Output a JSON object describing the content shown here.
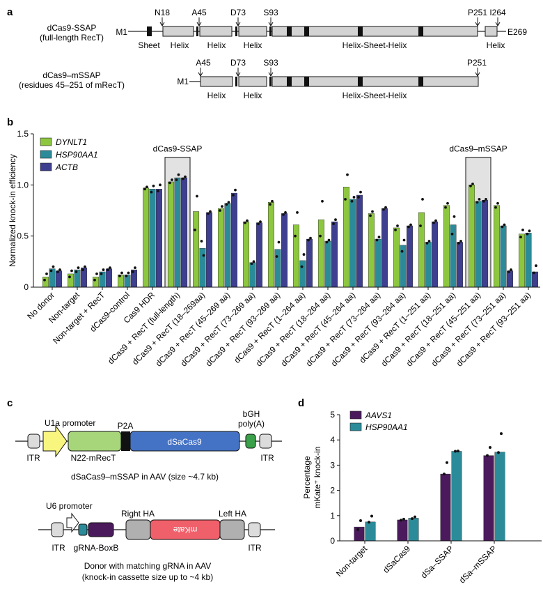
{
  "panel_labels": {
    "a": "a",
    "b": "b",
    "c": "c",
    "d": "d"
  },
  "panel_a": {
    "construct1": {
      "name_line1": "dCas9-SSAP",
      "name_line2": "(full-length RecT)",
      "start_label": "M1",
      "end_label": "E269",
      "markers": [
        "N18",
        "A45",
        "D73",
        "S93",
        "P251",
        "I264"
      ],
      "domains": [
        "Sheet",
        "Helix",
        "Helix",
        "Helix",
        "Helix-Sheet-Helix",
        "Helix"
      ]
    },
    "construct2": {
      "name_line1": "dCas9–mSSAP",
      "name_line2": "(residues 45–251 of mRecT)",
      "start_label": "M1",
      "markers": [
        "A45",
        "D73",
        "S93",
        "P251"
      ],
      "domains": [
        "Helix",
        "Helix",
        "Helix-Sheet-Helix"
      ]
    }
  },
  "panel_c": {
    "aav1": {
      "top_labels": [
        "U1a promoter",
        "P2A",
        "bGH",
        "poly(A)"
      ],
      "bottom_labels": [
        "ITR",
        "N22-mRecT",
        "ITR"
      ],
      "gene_label": "dSaCas9",
      "caption": "dSaCas9–mSSAP in AAV (size ~4.7 kb)"
    },
    "aav2": {
      "top_labels": [
        "U6 promoter",
        "Right HA",
        "Left HA"
      ],
      "bottom_labels": [
        "ITR",
        "gRNA-BoxB",
        "ITR"
      ],
      "gene_label": "mKate",
      "caption_line1": "Donor with matching gRNA in AAV",
      "caption_line2": "(knock-in cassette size up to ~4 kb)"
    }
  },
  "chart_data": [
    {
      "panel": "b",
      "type": "bar",
      "ylabel": "Normalized knock-in efficiency",
      "ylim": [
        0,
        1.5
      ],
      "yticks": [
        "0",
        "0.5",
        "1.0",
        "1.5"
      ],
      "legend_position": "top-left",
      "categories": [
        "No donor",
        "Non-target",
        "Non-target + RecT",
        "dCas9-control",
        "Cas9 HDR",
        "dCas9 + RecT (full-length)",
        "dCas9 + RecT (18–269aa)",
        "dCas9 + RecT (45–269 aa)",
        "dCas9 + RecT (73–269 aa)",
        "dCas9 + RecT (93–269 aa)",
        "dCas9 + RecT (1–264 aa)",
        "dCas9 + RecT (18–264 aa)",
        "dCas9 + RecT (45–264 aa)",
        "dCas9 + RecT (73–264 aa)",
        "dCas9 + RecT (93–264 aa)",
        "dCas9 + RecT (1–251 aa)",
        "dCas9 + RecT (18–251 aa)",
        "dCas9 + RecT (45–251 aa)",
        "dCas9 + RecT (73–251 aa)",
        "dCas9 + RecT (93–251 aa)"
      ],
      "series": [
        {
          "name": "DYNLT1",
          "color": "#8dc63f",
          "values": [
            0.1,
            0.13,
            0.1,
            0.12,
            0.97,
            1.03,
            0.74,
            0.77,
            0.64,
            0.83,
            0.61,
            0.66,
            0.98,
            0.72,
            0.58,
            0.73,
            0.8,
            1.0,
            0.8,
            0.52
          ],
          "points": [
            [
              0.07,
              0.13
            ],
            [
              0.1,
              0.16
            ],
            [
              0.07,
              0.13
            ],
            [
              0.11,
              0.14
            ],
            [
              0.96,
              0.98
            ],
            [
              1.02,
              1.05
            ],
            [
              0.56,
              0.89
            ],
            [
              0.75,
              0.79
            ],
            [
              0.63,
              0.65
            ],
            [
              0.81,
              0.84
            ],
            [
              0.5,
              0.73
            ],
            [
              0.5,
              0.84
            ],
            [
              0.86,
              1.1
            ],
            [
              0.7,
              0.74
            ],
            [
              0.56,
              0.6
            ],
            [
              0.6,
              0.86
            ],
            [
              0.78,
              0.82
            ],
            [
              0.99,
              1.01
            ],
            [
              0.78,
              0.82
            ],
            [
              0.49,
              0.56
            ]
          ]
        },
        {
          "name": "HSP90AA1",
          "color": "#2c8b99",
          "values": [
            0.18,
            0.17,
            0.15,
            0.12,
            0.96,
            1.07,
            0.38,
            0.82,
            0.24,
            0.37,
            0.26,
            0.45,
            0.86,
            0.47,
            0.41,
            0.44,
            0.61,
            0.84,
            0.6,
            0.53
          ],
          "points": [
            [
              0.16,
              0.2
            ],
            [
              0.15,
              0.19
            ],
            [
              0.13,
              0.17
            ],
            [
              0.11,
              0.14
            ],
            [
              0.93,
              0.99
            ],
            [
              1.05,
              1.1
            ],
            [
              0.45,
              0.31
            ],
            [
              0.81,
              0.83
            ],
            [
              0.23,
              0.25
            ],
            [
              0.3,
              0.44
            ],
            [
              0.2,
              0.32
            ],
            [
              0.44,
              0.46
            ],
            [
              0.84,
              0.88
            ],
            [
              0.46,
              0.49
            ],
            [
              0.35,
              0.46
            ],
            [
              0.43,
              0.45
            ],
            [
              0.52,
              0.69
            ],
            [
              0.83,
              0.86
            ],
            [
              0.59,
              0.61
            ],
            [
              0.52,
              0.55
            ]
          ]
        },
        {
          "name": "ACTB",
          "color": "#3e3f8f",
          "values": [
            0.16,
            0.19,
            0.18,
            0.17,
            0.96,
            1.07,
            0.73,
            0.92,
            0.63,
            0.72,
            0.47,
            0.64,
            0.9,
            0.77,
            0.6,
            0.64,
            0.44,
            0.85,
            0.16,
            0.15
          ],
          "points": [
            [
              0.15,
              0.17
            ],
            [
              0.17,
              0.2
            ],
            [
              0.17,
              0.19
            ],
            [
              0.15,
              0.19
            ],
            [
              0.94,
              1.0
            ],
            [
              1.06,
              1.08
            ],
            [
              0.72,
              0.74
            ],
            [
              0.9,
              0.95
            ],
            [
              0.62,
              0.64
            ],
            [
              0.71,
              0.73
            ],
            [
              0.46,
              0.48
            ],
            [
              0.62,
              0.66
            ],
            [
              0.88,
              0.93
            ],
            [
              0.76,
              0.78
            ],
            [
              0.59,
              0.61
            ],
            [
              0.63,
              0.65
            ],
            [
              0.43,
              0.45
            ],
            [
              0.84,
              0.86
            ],
            [
              0.15,
              0.17
            ],
            [
              0.14,
              0.21
            ]
          ]
        }
      ],
      "annotations": [
        {
          "text": "dCas9-SSAP",
          "category": "dCas9 + RecT (full-length)"
        },
        {
          "text": "dCas9–mSSAP",
          "category": "dCas9 + RecT (45–251 aa)"
        }
      ]
    },
    {
      "panel": "d",
      "type": "bar",
      "ylabel_line1": "Percentage",
      "ylabel_line2": "mKate⁺ knock-in",
      "ylim": [
        0,
        5
      ],
      "yticks": [
        "0",
        "1",
        "2",
        "3",
        "4",
        "5"
      ],
      "legend_position": "top-left",
      "categories": [
        "Non-target",
        "dSaCas9",
        "dSa–SSAP",
        "dSa–mSSAP"
      ],
      "series": [
        {
          "name": "AAVS1",
          "color": "#4a1a5c",
          "values": [
            0.55,
            0.83,
            2.65,
            3.38
          ],
          "points": [
            [
              0.45,
              0.8
            ],
            [
              0.82,
              0.86
            ],
            [
              2.65,
              3.1
            ],
            [
              3.38,
              3.7
            ]
          ]
        },
        {
          "name": "HSP90AA1",
          "color": "#2c8b99",
          "values": [
            0.75,
            0.9,
            3.55,
            3.52
          ],
          "points": [
            [
              0.74,
              0.98
            ],
            [
              0.88,
              0.95
            ],
            [
              3.55,
              3.56
            ],
            [
              3.5,
              4.25
            ]
          ]
        }
      ]
    }
  ]
}
